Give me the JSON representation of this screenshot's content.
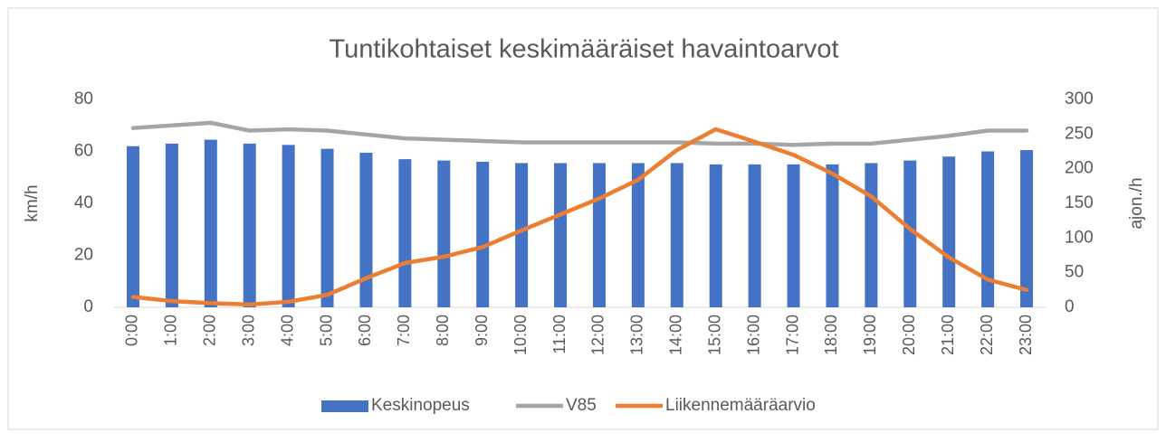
{
  "chart_data": {
    "type": "bar",
    "title": "Tuntikohtaiset keskimääräiset havaintoarvot",
    "ylabel": "km/h",
    "y2label": "ajon./h",
    "categories": [
      "0:00",
      "1:00",
      "2:00",
      "3:00",
      "4:00",
      "5:00",
      "6:00",
      "7:00",
      "8:00",
      "9:00",
      "10:00",
      "11:00",
      "12:00",
      "13:00",
      "14:00",
      "15:00",
      "16:00",
      "17:00",
      "18:00",
      "19:00",
      "20:00",
      "21:00",
      "22:00",
      "23:00"
    ],
    "ylim": [
      0,
      80
    ],
    "yticks": [
      0,
      20,
      40,
      60,
      80
    ],
    "y2lim": [
      0,
      300
    ],
    "y2ticks": [
      0,
      50,
      100,
      150,
      200,
      250,
      300
    ],
    "grid": false,
    "legend": "bottom",
    "series": [
      {
        "name": "Keskinopeus",
        "type": "bar",
        "color": "#4472c4",
        "values": [
          62,
          63,
          64.5,
          63,
          62.5,
          61,
          59.5,
          57,
          56.5,
          56,
          55.5,
          55.5,
          55.5,
          55.5,
          55.5,
          55,
          55,
          55,
          55,
          55.5,
          56.5,
          58,
          60,
          60.5
        ]
      },
      {
        "name": "V85",
        "type": "line",
        "color": "#a5a5a5",
        "values": [
          69,
          70,
          71,
          68,
          68.5,
          68,
          66.5,
          65,
          64.5,
          64,
          63.5,
          63.5,
          63.5,
          63.5,
          63.5,
          63,
          63,
          62.5,
          63,
          63,
          64.5,
          66,
          68,
          68
        ]
      },
      {
        "name": "Liikennemääräarvio",
        "type": "line",
        "axis": "y2",
        "color": "#ed7d31",
        "values": [
          15,
          9,
          6,
          4,
          8,
          18,
          42,
          64,
          73,
          87,
          111,
          134,
          157,
          184,
          227,
          257,
          239,
          220,
          193,
          160,
          113,
          72,
          40,
          25
        ]
      }
    ]
  }
}
